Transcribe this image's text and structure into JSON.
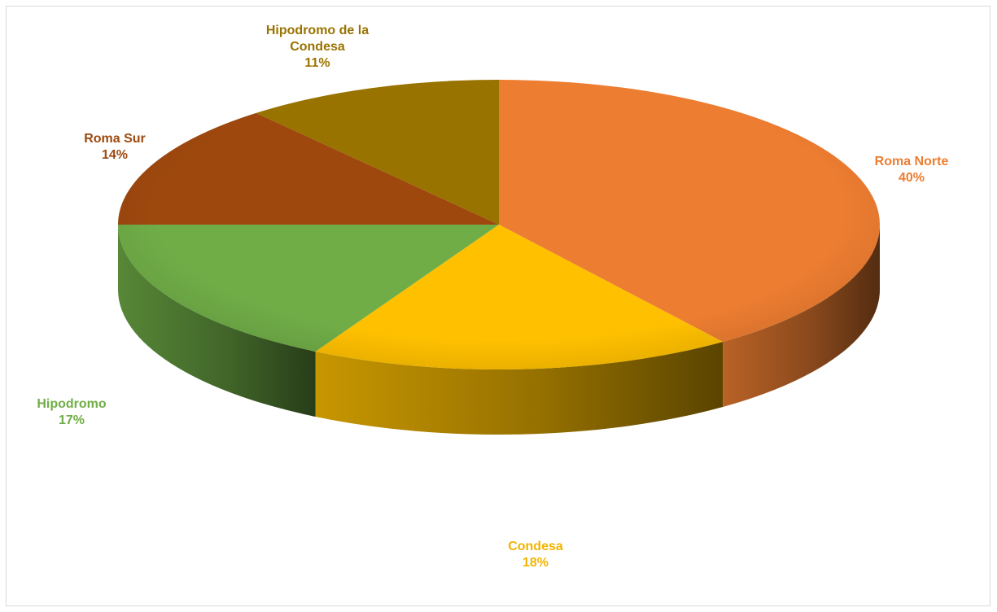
{
  "chart_data": {
    "type": "pie",
    "style": "3d",
    "title": "",
    "legend": "none",
    "slices": [
      {
        "label": "Roma Norte",
        "value": 40,
        "display": "40%",
        "color": "#ED7D31"
      },
      {
        "label": "Condesa",
        "value": 18,
        "display": "18%",
        "color": "#FFC000"
      },
      {
        "label": "Hipodromo",
        "value": 17,
        "display": "17%",
        "color": "#70AD47"
      },
      {
        "label": "Roma Sur",
        "value": 14,
        "display": "14%",
        "color": "#9E480E"
      },
      {
        "label": "Hipodromo de la Condesa",
        "value": 11,
        "display": "11%",
        "color": "#997300"
      }
    ]
  }
}
